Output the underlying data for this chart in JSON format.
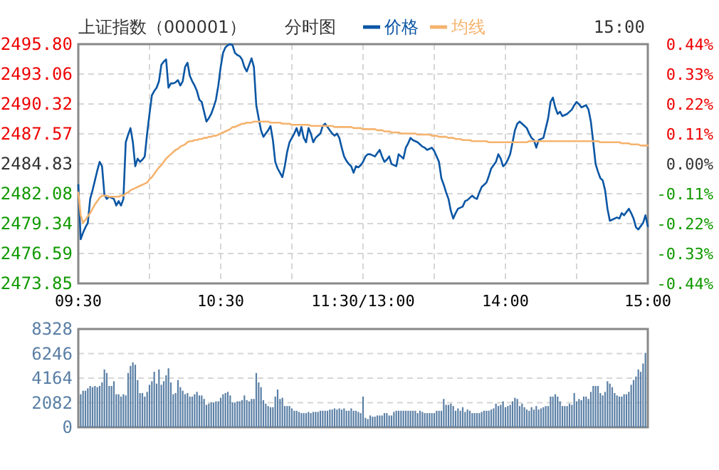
{
  "chart_data": [
    {
      "type": "line",
      "title": "上证指数（000001）",
      "subtitle": "分时图",
      "annotations": [
        "15:00"
      ],
      "legend": "top",
      "grid": true,
      "categories": [
        "09:30",
        null,
        null,
        null,
        null,
        null,
        null,
        null,
        null,
        null,
        null,
        null,
        null,
        null,
        null,
        null,
        null,
        null,
        null,
        null,
        null,
        null,
        null,
        null,
        null,
        null,
        null,
        null,
        null,
        null,
        null,
        null,
        null,
        null,
        null,
        null,
        null,
        null,
        null,
        null,
        null,
        null,
        null,
        null,
        null,
        null,
        null,
        null,
        null,
        null,
        null,
        null,
        null,
        null,
        null,
        null,
        null,
        null,
        null,
        null,
        "10:30",
        null,
        null,
        null,
        null,
        null,
        null,
        null,
        null,
        null,
        null,
        null,
        null,
        null,
        null,
        null,
        null,
        null,
        null,
        null,
        null,
        null,
        null,
        null,
        null,
        null,
        null,
        null,
        null,
        null,
        null,
        null,
        null,
        null,
        null,
        null,
        null,
        null,
        null,
        null,
        null,
        null,
        null,
        null,
        null,
        null,
        null,
        null,
        null,
        null,
        null,
        null,
        null,
        null,
        null,
        null,
        null,
        null,
        null,
        null,
        "11:30/13:00",
        null,
        null,
        null,
        null,
        null,
        null,
        null,
        null,
        null,
        null,
        null,
        null,
        null,
        null,
        null,
        null,
        null,
        null,
        null,
        null,
        null,
        null,
        null,
        null,
        null,
        null,
        null,
        null,
        null,
        null,
        null,
        null,
        null,
        null,
        null,
        null,
        null,
        null,
        null,
        null,
        null,
        null,
        null,
        null,
        null,
        null,
        null,
        null,
        null,
        null,
        null,
        null,
        null,
        null,
        null,
        null,
        null,
        null,
        null,
        "14:00",
        null,
        null,
        null,
        null,
        null,
        null,
        null,
        null,
        null,
        null,
        null,
        null,
        null,
        null,
        null,
        null,
        null,
        null,
        null,
        null,
        null,
        null,
        null,
        null,
        null,
        null,
        null,
        null,
        null,
        null,
        null,
        null,
        null,
        null,
        null,
        null,
        null,
        null,
        null,
        null,
        null,
        null,
        null,
        null,
        null,
        null,
        null,
        null,
        null,
        null,
        null,
        null,
        null,
        null,
        null,
        null,
        null,
        null,
        null,
        "15:00"
      ],
      "ylim": [
        2473.85,
        2495.8
      ],
      "yticks": [
        2473.85,
        2476.59,
        2479.34,
        2482.08,
        2484.83,
        2487.57,
        2490.32,
        2493.06,
        {
          "value": 2495.8,
          "label": "2495.80"
        }
      ],
      "y2lim": [
        -0.44,
        0.44
      ],
      "y2ticks": [
        {
          "value": -0.44,
          "label": "-0.44%"
        },
        {
          "value": -0.33,
          "label": "-0.33%"
        },
        {
          "value": -0.22,
          "label": "-0.22%"
        },
        {
          "value": -0.11,
          "label": "-0.11%"
        },
        {
          "value": 0,
          "label": "0.00%"
        },
        {
          "value": 0.11,
          "label": "0.11%"
        },
        {
          "value": 0.22,
          "label": "0.22%"
        },
        {
          "value": 0.33,
          "label": "0.33%"
        },
        {
          "value": 0.44,
          "label": "0.44%"
        }
      ],
      "series": [
        {
          "name": "价格",
          "color": "#0b56a4",
          "values": [
            2482.9,
            2477.9,
            2478.5,
            2479.0,
            2479.4,
            2481.6,
            2482.4,
            2483.3,
            2484.2,
            2485.0,
            2484.6,
            2482.0,
            2481.6,
            2481.8,
            2481.7,
            2481.6,
            2481.0,
            2481.4,
            2481.0,
            2481.6,
            2486.8,
            2487.5,
            2488.1,
            2486.8,
            2484.6,
            2485.3,
            2485.0,
            2485.2,
            2485.5,
            2487.6,
            2489.4,
            2491.1,
            2491.5,
            2491.8,
            2492.4,
            2493.9,
            2494.2,
            2494.4,
            2491.8,
            2492.2,
            2492.2,
            2492.3,
            2492.5,
            2492.0,
            2492.4,
            2493.7,
            2494.1,
            2492.9,
            2492.4,
            2492.0,
            2491.5,
            2490.7,
            2490.5,
            2489.6,
            2488.7,
            2489.0,
            2489.4,
            2490.0,
            2490.7,
            2492.0,
            2493.7,
            2495.0,
            2495.5,
            2495.7,
            2495.8,
            2495.7,
            2495.0,
            2494.8,
            2494.7,
            2494.4,
            2493.7,
            2493.3,
            2493.9,
            2494.5,
            2493.7,
            2490.2,
            2489.0,
            2487.9,
            2487.3,
            2487.6,
            2487.9,
            2488.3,
            2487.0,
            2485.0,
            2484.4,
            2484.0,
            2483.6,
            2484.6,
            2485.9,
            2486.8,
            2487.2,
            2487.6,
            2488.1,
            2487.4,
            2488.2,
            2487.2,
            2486.8,
            2488.1,
            2487.6,
            2486.8,
            2487.2,
            2487.4,
            2487.6,
            2488.3,
            2488.5,
            2488.2,
            2487.9,
            2487.6,
            2487.4,
            2487.6,
            2487.2,
            2486.3,
            2485.5,
            2485.1,
            2484.8,
            2484.6,
            2484.0,
            2484.6,
            2484.5,
            2484.7,
            2485.0,
            2485.5,
            2485.7,
            2485.7,
            2485.6,
            2485.5,
            2485.8,
            2486.1,
            2485.5,
            2485.0,
            2485.2,
            2485.5,
            2484.8,
            2484.7,
            2484.6,
            2485.7,
            2485.5,
            2485.3,
            2486.3,
            2486.7,
            2487.2,
            2487.0,
            2486.9,
            2486.8,
            2486.6,
            2486.4,
            2486.3,
            2486.1,
            2486.2,
            2486.3,
            2486.0,
            2485.5,
            2485.0,
            2483.5,
            2482.9,
            2482.2,
            2481.6,
            2480.5,
            2479.8,
            2480.3,
            2480.7,
            2480.8,
            2480.9,
            2481.4,
            2481.5,
            2481.7,
            2481.9,
            2481.7,
            2481.6,
            2482.2,
            2482.7,
            2482.9,
            2483.1,
            2483.7,
            2484.4,
            2484.7,
            2485.0,
            2485.7,
            2485.3,
            2484.6,
            2484.8,
            2485.2,
            2485.7,
            2486.8,
            2487.9,
            2488.5,
            2488.7,
            2488.5,
            2488.3,
            2488.1,
            2487.6,
            2487.2,
            2487.0,
            2486.3,
            2487.0,
            2487.1,
            2487.2,
            2488.1,
            2489.0,
            2490.5,
            2490.9,
            2490.0,
            2489.4,
            2489.6,
            2489.2,
            2489.3,
            2489.4,
            2489.6,
            2489.8,
            2490.2,
            2490.5,
            2490.3,
            2490.0,
            2490.1,
            2490.2,
            2489.8,
            2488.7,
            2486.8,
            2484.8,
            2484.1,
            2483.5,
            2483.3,
            2482.4,
            2480.7,
            2479.6,
            2479.7,
            2479.8,
            2479.9,
            2479.8,
            2480.3,
            2480.1,
            2480.4,
            2480.7,
            2480.3,
            2479.8,
            2479.0,
            2478.8,
            2479.1,
            2479.4,
            2480.1,
            2479.1
          ]
        },
        {
          "name": "均线",
          "color": "#f5b36e",
          "values": [
            2482.2,
            2480.1,
            2479.4,
            2479.7,
            2480.0,
            2480.3,
            2480.7,
            2481.1,
            2481.4,
            2481.7,
            2481.9,
            2481.9,
            2481.9,
            2481.8,
            2481.8,
            2481.8,
            2481.8,
            2481.8,
            2481.9,
            2481.9,
            2482.1,
            2482.2,
            2482.4,
            2482.5,
            2482.6,
            2482.7,
            2482.8,
            2482.9,
            2483.0,
            2483.1,
            2483.4,
            2483.6,
            2483.9,
            2484.2,
            2484.5,
            2484.7,
            2485.0,
            2485.3,
            2485.5,
            2485.7,
            2485.9,
            2486.1,
            2486.2,
            2486.4,
            2486.5,
            2486.6,
            2486.8,
            2486.9,
            2486.9,
            2487.0,
            2487.0,
            2487.1,
            2487.1,
            2487.2,
            2487.2,
            2487.3,
            2487.3,
            2487.4,
            2487.4,
            2487.5,
            2487.6,
            2487.7,
            2487.8,
            2487.9,
            2488.0,
            2488.2,
            2488.2,
            2488.3,
            2488.4,
            2488.5,
            2488.5,
            2488.6,
            2488.6,
            2488.6,
            2488.7,
            2488.7,
            2488.7,
            2488.7,
            2488.7,
            2488.7,
            2488.7,
            2488.6,
            2488.6,
            2488.6,
            2488.6,
            2488.6,
            2488.5,
            2488.5,
            2488.5,
            2488.5,
            2488.4,
            2488.4,
            2488.4,
            2488.4,
            2488.4,
            2488.4,
            2488.4,
            2488.4,
            2488.3,
            2488.3,
            2488.3,
            2488.3,
            2488.3,
            2488.3,
            2488.3,
            2488.3,
            2488.3,
            2488.3,
            2488.2,
            2488.2,
            2488.2,
            2488.2,
            2488.2,
            2488.2,
            2488.2,
            2488.2,
            2488.1,
            2488.1,
            2488.1,
            2488.1,
            2488.0,
            2488.0,
            2488.0,
            2488.0,
            2488.0,
            2488.0,
            2487.9,
            2487.9,
            2487.9,
            2487.8,
            2487.8,
            2487.8,
            2487.7,
            2487.7,
            2487.7,
            2487.7,
            2487.6,
            2487.6,
            2487.6,
            2487.6,
            2487.6,
            2487.6,
            2487.6,
            2487.5,
            2487.5,
            2487.5,
            2487.5,
            2487.5,
            2487.5,
            2487.4,
            2487.4,
            2487.4,
            2487.3,
            2487.3,
            2487.3,
            2487.3,
            2487.2,
            2487.2,
            2487.2,
            2487.1,
            2487.1,
            2487.1,
            2487.0,
            2487.0,
            2487.0,
            2487.0,
            2486.9,
            2486.9,
            2486.9,
            2486.9,
            2486.9,
            2486.9,
            2486.9,
            2486.8,
            2486.8,
            2486.8,
            2486.8,
            2486.8,
            2486.8,
            2486.8,
            2486.8,
            2486.8,
            2486.8,
            2486.8,
            2486.8,
            2486.8,
            2486.8,
            2486.8,
            2486.8,
            2486.8,
            2486.9,
            2486.9,
            2486.9,
            2486.9,
            2486.9,
            2486.9,
            2486.9,
            2486.9,
            2486.9,
            2486.9,
            2486.9,
            2486.9,
            2486.9,
            2486.9,
            2486.9,
            2486.9,
            2486.9,
            2486.9,
            2486.9,
            2486.9,
            2486.9,
            2486.9,
            2486.9,
            2486.9,
            2486.9,
            2486.9,
            2486.9,
            2486.9,
            2486.9,
            2486.9,
            2486.8,
            2486.8,
            2486.8,
            2486.8,
            2486.8,
            2486.8,
            2486.8,
            2486.8,
            2486.8,
            2486.7,
            2486.7,
            2486.7,
            2486.7,
            2486.6,
            2486.6,
            2486.6,
            2486.6,
            2486.5,
            2486.5,
            2486.5,
            2486.5
          ]
        }
      ]
    },
    {
      "type": "bar",
      "grid": "y",
      "categories": [
        null,
        null,
        null,
        null,
        null,
        null,
        null,
        null,
        null,
        null,
        null,
        null,
        null,
        null,
        null,
        null,
        null,
        null,
        null,
        null,
        null,
        null,
        null,
        null,
        null,
        null,
        null,
        null,
        null,
        null,
        null,
        null,
        null,
        null,
        null,
        null,
        null,
        null,
        null,
        null,
        null,
        null,
        null,
        null,
        null,
        null,
        null,
        null,
        null,
        null,
        null,
        null,
        null,
        null,
        null,
        null,
        null,
        null,
        null,
        null,
        null,
        null,
        null,
        null,
        null,
        null,
        null,
        null,
        null,
        null,
        null,
        null,
        null,
        null,
        null,
        null,
        null,
        null,
        null,
        null,
        null,
        null,
        null,
        null,
        null,
        null,
        null,
        null,
        null,
        null,
        null,
        null,
        null,
        null,
        null,
        null,
        null,
        null,
        null,
        null,
        null,
        null,
        null,
        null,
        null,
        null,
        null,
        null,
        null,
        null,
        null,
        null,
        null,
        null,
        null,
        null,
        null,
        null,
        null,
        null,
        null,
        null,
        null,
        null,
        null,
        null,
        null,
        null,
        null,
        null,
        null,
        null,
        null,
        null,
        null,
        null,
        null,
        null,
        null,
        null,
        null,
        null,
        null,
        null,
        null,
        null,
        null,
        null,
        null,
        null,
        null,
        null,
        null,
        null,
        null,
        null,
        null,
        null,
        null,
        null,
        null,
        null,
        null,
        null,
        null,
        null,
        null,
        null,
        null,
        null,
        null,
        null,
        null,
        null,
        null,
        null,
        null,
        null,
        null,
        null,
        null,
        null,
        null,
        null,
        null,
        null,
        null,
        null,
        null,
        null,
        null,
        null,
        null,
        null,
        null,
        null,
        null,
        null,
        null,
        null,
        null,
        null,
        null,
        null,
        null,
        null,
        null,
        null,
        null,
        null,
        null,
        null,
        null,
        null,
        null,
        null,
        null,
        null,
        null,
        null,
        null,
        null,
        null,
        null,
        null,
        null,
        null,
        null,
        null,
        null,
        null,
        null,
        null,
        null,
        null,
        null,
        null,
        null,
        null,
        null,
        null
      ],
      "ylim": [
        0,
        8328
      ],
      "yticks": [
        0,
        2082,
        4164,
        6246,
        8328
      ],
      "series": [
        {
          "color": "#5a7fa5",
          "values": [
            null,
            2800,
            3100,
            3100,
            3300,
            3500,
            3400,
            3500,
            3400,
            3500,
            3800,
            4900,
            4600,
            3500,
            3500,
            3900,
            2800,
            2800,
            2600,
            2800,
            2700,
            4600,
            5200,
            5500,
            5300,
            4000,
            2900,
            2900,
            2600,
            3000,
            3600,
            3900,
            4700,
            3700,
            4900,
            3600,
            3900,
            4400,
            5000,
            3800,
            2800,
            2900,
            4000,
            3400,
            3100,
            2800,
            2900,
            2600,
            2600,
            2800,
            3000,
            2700,
            2700,
            2400,
            1900,
            2000,
            2100,
            2100,
            2200,
            2200,
            2500,
            2800,
            2900,
            3000,
            2700,
            2100,
            2100,
            2200,
            2200,
            2300,
            2700,
            2300,
            2200,
            2400,
            2400,
            4600,
            3800,
            3400,
            2300,
            2000,
            1800,
            1700,
            1700,
            2600,
            3200,
            2400,
            2500,
            1800,
            1800,
            1800,
            1600,
            1400,
            1400,
            1300,
            1200,
            1200,
            1200,
            1300,
            1200,
            1300,
            1300,
            1300,
            1400,
            1400,
            1400,
            1400,
            1500,
            1500,
            1600,
            1500,
            1600,
            1500,
            1600,
            1400,
            1400,
            1600,
            1400,
            1400,
            1300,
            1200,
            2600,
            800,
            700,
            1000,
            900,
            900,
            1000,
            1000,
            1000,
            1200,
            1200,
            1000,
            1000,
            1300,
            1400,
            1400,
            1400,
            1400,
            1400,
            1400,
            1400,
            1400,
            1400,
            1200,
            1400,
            1300,
            1200,
            1200,
            1200,
            1200,
            1200,
            1400,
            1400,
            1400,
            2400,
            1900,
            1900,
            2000,
            1800,
            1400,
            1600,
            1400,
            1700,
            1300,
            1500,
            1400,
            1200,
            1200,
            1200,
            1200,
            1300,
            1400,
            1400,
            1400,
            1500,
            1600,
            2000,
            1800,
            1900,
            2200,
            1700,
            1800,
            1900,
            2200,
            2500,
            2400,
            1800,
            2000,
            1700,
            1500,
            1400,
            1700,
            1500,
            1800,
            1500,
            1600,
            1700,
            1800,
            1800,
            2600,
            2600,
            2800,
            2600,
            2200,
            1800,
            1800,
            1800,
            2000,
            1900,
            2900,
            2200,
            2400,
            2300,
            2600,
            2600,
            2400,
            3000,
            3500,
            3500,
            3500,
            2900,
            2700,
            3000,
            3900,
            3700,
            3400,
            2900,
            2700,
            2600,
            2600,
            2800,
            2800,
            3000,
            3600,
            4000,
            4300,
            4900,
            4700,
            5400,
            6300,
            null
          ]
        }
      ]
    }
  ]
}
